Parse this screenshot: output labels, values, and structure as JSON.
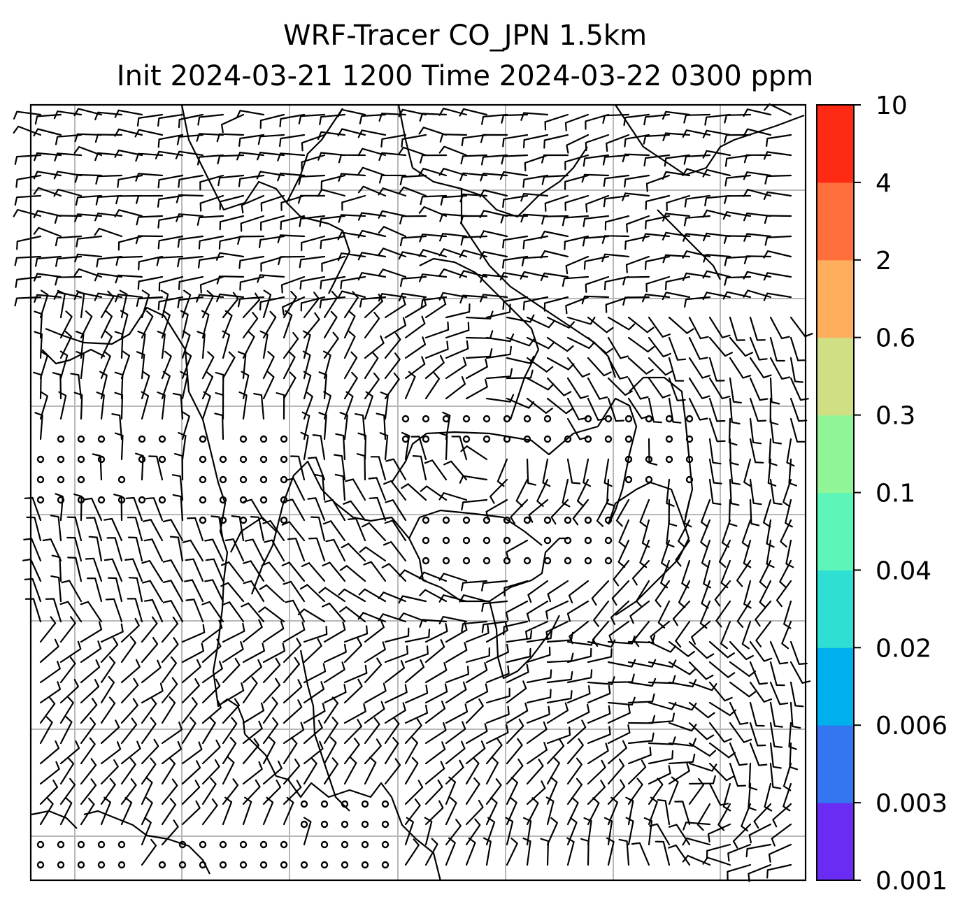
{
  "title": {
    "line1": "WRF-Tracer CO_JPN 1.5km",
    "line2": "Init 2024-03-21 1200 Time 2024-03-22 0300 ppm"
  },
  "colorbar": {
    "levels": [
      "0.001",
      "0.003",
      "0.006",
      "0.02",
      "0.04",
      "0.1",
      "0.3",
      "0.6",
      "2",
      "4",
      "10"
    ],
    "colors": [
      "#6a2cf5",
      "#3476f0",
      "#00b0ec",
      "#2fdfd3",
      "#5ef5b8",
      "#90f597",
      "#d0df83",
      "#ffae5e",
      "#ff6f3c",
      "#ff2a14"
    ]
  },
  "map": {
    "grid": "on",
    "grid_color": "#b8b8b8",
    "barb_color": "#000000",
    "coastline_color": "#000000"
  }
}
